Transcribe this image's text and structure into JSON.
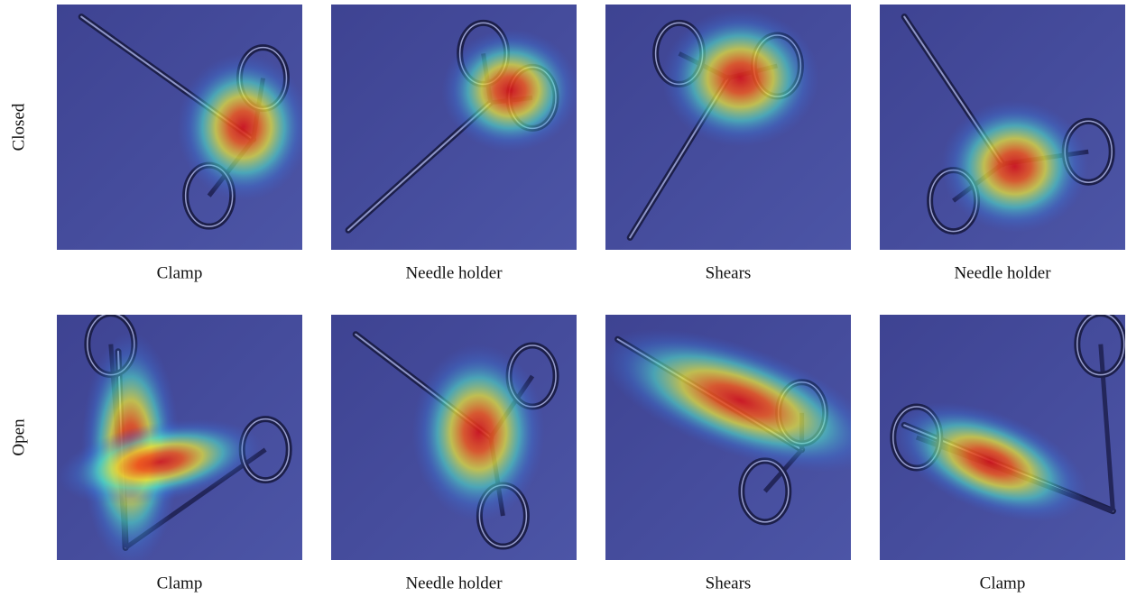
{
  "rows": [
    {
      "label": "Closed",
      "captions": [
        "Clamp",
        "Needle holder",
        "Shears",
        "Needle holder"
      ]
    },
    {
      "label": "Open",
      "captions": [
        "Clamp",
        "Needle holder",
        "Shears",
        "Clamp"
      ]
    }
  ]
}
